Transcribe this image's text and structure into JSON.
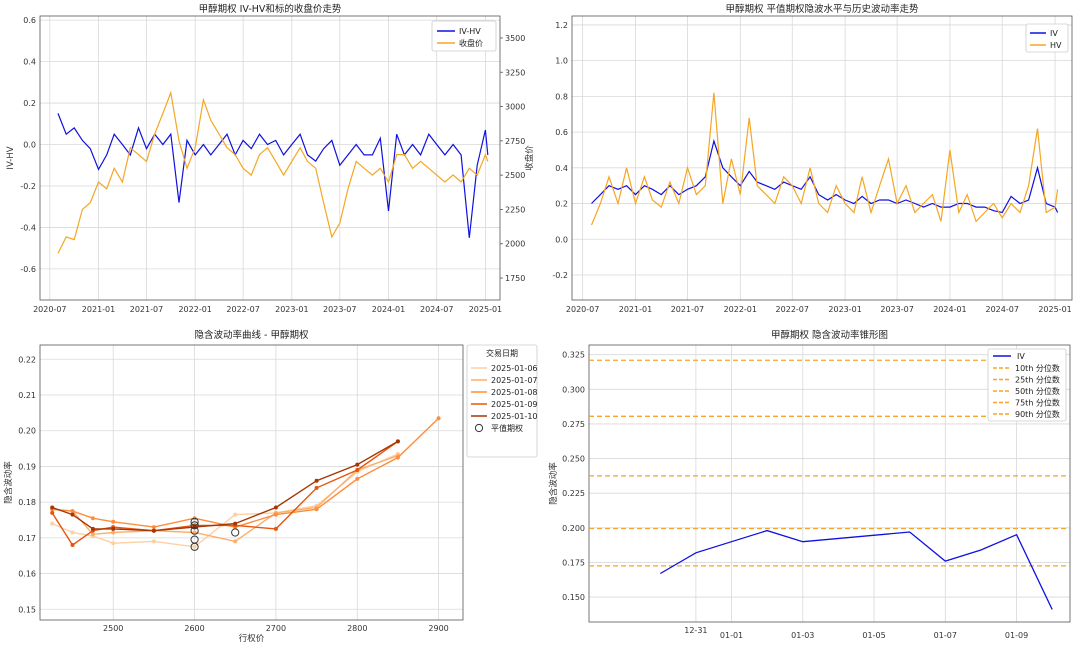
{
  "chart_data": [
    {
      "type": "line",
      "title": "甲醇期权 IV-HV和标的收盘价走势",
      "xlabel": "",
      "ylabel": "IV-HV",
      "y2label": "收盘价",
      "x_ticks": [
        "2020-07",
        "2021-01",
        "2021-07",
        "2022-01",
        "2022-07",
        "2023-01",
        "2023-07",
        "2024-01",
        "2024-07",
        "2025-01"
      ],
      "y_ticks": [
        "-0.6",
        "-0.4",
        "-0.2",
        "0.0",
        "0.2",
        "0.4",
        "0.6"
      ],
      "y2_ticks": [
        "1750",
        "2000",
        "2250",
        "2500",
        "2750",
        "3000",
        "3250",
        "3500"
      ],
      "ylim": [
        -0.75,
        0.62
      ],
      "y2lim": [
        1590,
        3660
      ],
      "grid": true,
      "legend": "top-right",
      "colors": {
        "iv_hv": "#1010e0",
        "close": "#f5a623",
        "left_axis": "#1f77b4",
        "right_axis": "#d62728"
      },
      "series": [
        {
          "name": "IV-HV",
          "axis": "left",
          "x": [
            "2020-08-01",
            "2020-09-01",
            "2020-10-01",
            "2020-11-01",
            "2020-12-01",
            "2021-01-01",
            "2021-02-01",
            "2021-03-01",
            "2021-04-01",
            "2021-05-01",
            "2021-06-01",
            "2021-07-01",
            "2021-08-01",
            "2021-09-01",
            "2021-10-01",
            "2021-11-01",
            "2021-12-01",
            "2022-01-01",
            "2022-02-01",
            "2022-03-01",
            "2022-04-01",
            "2022-05-01",
            "2022-06-01",
            "2022-07-01",
            "2022-08-01",
            "2022-09-01",
            "2022-10-01",
            "2022-11-01",
            "2022-12-01",
            "2023-01-01",
            "2023-02-01",
            "2023-03-01",
            "2023-04-01",
            "2023-05-01",
            "2023-06-01",
            "2023-07-01",
            "2023-08-01",
            "2023-09-01",
            "2023-10-01",
            "2023-11-01",
            "2023-12-01",
            "2024-01-01",
            "2024-02-01",
            "2024-03-01",
            "2024-04-01",
            "2024-05-01",
            "2024-06-01",
            "2024-07-01",
            "2024-08-01",
            "2024-09-01",
            "2024-10-01",
            "2024-11-01",
            "2024-12-01",
            "2025-01-01",
            "2025-01-10"
          ],
          "values": [
            0.15,
            0.05,
            0.08,
            0.02,
            -0.02,
            -0.12,
            -0.05,
            0.05,
            0.0,
            -0.05,
            0.08,
            -0.02,
            0.05,
            0.0,
            0.05,
            -0.28,
            0.02,
            -0.05,
            0.0,
            -0.05,
            0.0,
            0.05,
            -0.05,
            0.02,
            -0.02,
            0.05,
            0.0,
            0.02,
            -0.05,
            0.0,
            0.05,
            -0.05,
            -0.08,
            -0.02,
            0.02,
            -0.1,
            -0.05,
            0.0,
            -0.05,
            -0.05,
            0.03,
            -0.32,
            0.05,
            -0.05,
            0.0,
            -0.05,
            0.05,
            0.0,
            -0.05,
            0.0,
            -0.05,
            -0.45,
            -0.1,
            0.07,
            -0.05
          ]
        },
        {
          "name": "收盘价",
          "axis": "right",
          "x": [
            "2020-08-01",
            "2020-09-01",
            "2020-10-01",
            "2020-11-01",
            "2020-12-01",
            "2021-01-01",
            "2021-02-01",
            "2021-03-01",
            "2021-04-01",
            "2021-05-01",
            "2021-06-01",
            "2021-07-01",
            "2021-08-01",
            "2021-09-01",
            "2021-10-01",
            "2021-11-01",
            "2021-12-01",
            "2022-01-01",
            "2022-02-01",
            "2022-03-01",
            "2022-04-01",
            "2022-05-01",
            "2022-06-01",
            "2022-07-01",
            "2022-08-01",
            "2022-09-01",
            "2022-10-01",
            "2022-11-01",
            "2022-12-01",
            "2023-01-01",
            "2023-02-01",
            "2023-03-01",
            "2023-04-01",
            "2023-05-01",
            "2023-06-01",
            "2023-07-01",
            "2023-08-01",
            "2023-09-01",
            "2023-10-01",
            "2023-11-01",
            "2023-12-01",
            "2024-01-01",
            "2024-02-01",
            "2024-03-01",
            "2024-04-01",
            "2024-05-01",
            "2024-06-01",
            "2024-07-01",
            "2024-08-01",
            "2024-09-01",
            "2024-10-01",
            "2024-11-01",
            "2024-12-01",
            "2025-01-01",
            "2025-01-10"
          ],
          "values": [
            1930,
            2050,
            2030,
            2250,
            2300,
            2450,
            2400,
            2550,
            2450,
            2700,
            2650,
            2600,
            2800,
            2950,
            3100,
            2750,
            2550,
            2700,
            3050,
            2900,
            2800,
            2700,
            2650,
            2550,
            2500,
            2650,
            2700,
            2600,
            2500,
            2600,
            2700,
            2600,
            2550,
            2300,
            2050,
            2150,
            2400,
            2600,
            2550,
            2500,
            2550,
            2450,
            2650,
            2650,
            2550,
            2600,
            2550,
            2500,
            2450,
            2500,
            2450,
            2550,
            2500,
            2650,
            2600
          ]
        }
      ]
    },
    {
      "type": "line",
      "title": "甲醇期权 平值期权隐波水平与历史波动率走势",
      "xlabel": "",
      "ylabel": "",
      "x_ticks": [
        "2020-07",
        "2021-01",
        "2021-07",
        "2022-01",
        "2022-07",
        "2023-01",
        "2023-07",
        "2024-01",
        "2024-07",
        "2025-01"
      ],
      "y_ticks": [
        "-0.2",
        "0.0",
        "0.2",
        "0.4",
        "0.6",
        "0.8",
        "1.0",
        "1.2"
      ],
      "ylim": [
        -0.34,
        1.25
      ],
      "grid": true,
      "legend": "top-right",
      "colors": {
        "iv": "#1010e0",
        "hv": "#f5a623"
      },
      "series": [
        {
          "name": "IV",
          "x": [
            "2020-08-01",
            "2020-09-01",
            "2020-10-01",
            "2020-11-01",
            "2020-12-01",
            "2021-01-01",
            "2021-02-01",
            "2021-03-01",
            "2021-04-01",
            "2021-05-01",
            "2021-06-01",
            "2021-07-01",
            "2021-08-01",
            "2021-09-01",
            "2021-10-01",
            "2021-11-01",
            "2021-12-01",
            "2022-01-01",
            "2022-02-01",
            "2022-03-01",
            "2022-04-01",
            "2022-05-01",
            "2022-06-01",
            "2022-07-01",
            "2022-08-01",
            "2022-09-01",
            "2022-10-01",
            "2022-11-01",
            "2022-12-01",
            "2023-01-01",
            "2023-02-01",
            "2023-03-01",
            "2023-04-01",
            "2023-05-01",
            "2023-06-01",
            "2023-07-01",
            "2023-08-01",
            "2023-09-01",
            "2023-10-01",
            "2023-11-01",
            "2023-12-01",
            "2024-01-01",
            "2024-02-01",
            "2024-03-01",
            "2024-04-01",
            "2024-05-01",
            "2024-06-01",
            "2024-07-01",
            "2024-08-01",
            "2024-09-01",
            "2024-10-01",
            "2024-11-01",
            "2024-12-01",
            "2025-01-01",
            "2025-01-10"
          ],
          "values": [
            0.2,
            0.25,
            0.3,
            0.28,
            0.3,
            0.25,
            0.3,
            0.28,
            0.25,
            0.3,
            0.25,
            0.28,
            0.3,
            0.35,
            0.55,
            0.4,
            0.35,
            0.3,
            0.38,
            0.32,
            0.3,
            0.28,
            0.32,
            0.3,
            0.28,
            0.35,
            0.25,
            0.22,
            0.25,
            0.22,
            0.2,
            0.24,
            0.2,
            0.22,
            0.22,
            0.2,
            0.22,
            0.2,
            0.18,
            0.2,
            0.18,
            0.18,
            0.2,
            0.2,
            0.18,
            0.18,
            0.16,
            0.15,
            0.24,
            0.2,
            0.22,
            0.4,
            0.2,
            0.18,
            0.15
          ]
        },
        {
          "name": "HV",
          "x": [
            "2020-08-01",
            "2020-09-01",
            "2020-10-01",
            "2020-11-01",
            "2020-12-01",
            "2021-01-01",
            "2021-02-01",
            "2021-03-01",
            "2021-04-01",
            "2021-05-01",
            "2021-06-01",
            "2021-07-01",
            "2021-08-01",
            "2021-09-01",
            "2021-10-01",
            "2021-11-01",
            "2021-12-01",
            "2022-01-01",
            "2022-02-01",
            "2022-03-01",
            "2022-04-01",
            "2022-05-01",
            "2022-06-01",
            "2022-07-01",
            "2022-08-01",
            "2022-09-01",
            "2022-10-01",
            "2022-11-01",
            "2022-12-01",
            "2023-01-01",
            "2023-02-01",
            "2023-03-01",
            "2023-04-01",
            "2023-05-01",
            "2023-06-01",
            "2023-07-01",
            "2023-08-01",
            "2023-09-01",
            "2023-10-01",
            "2023-11-01",
            "2023-12-01",
            "2024-01-01",
            "2024-02-01",
            "2024-03-01",
            "2024-04-01",
            "2024-05-01",
            "2024-06-01",
            "2024-07-01",
            "2024-08-01",
            "2024-09-01",
            "2024-10-01",
            "2024-11-01",
            "2024-12-01",
            "2025-01-01",
            "2025-01-10"
          ],
          "values": [
            0.08,
            0.2,
            0.35,
            0.2,
            0.4,
            0.2,
            0.35,
            0.22,
            0.18,
            0.32,
            0.2,
            0.4,
            0.25,
            0.3,
            0.82,
            0.2,
            0.45,
            0.25,
            0.68,
            0.3,
            0.25,
            0.2,
            0.35,
            0.3,
            0.2,
            0.4,
            0.2,
            0.15,
            0.3,
            0.2,
            0.15,
            0.35,
            0.15,
            0.3,
            0.45,
            0.2,
            0.3,
            0.15,
            0.2,
            0.25,
            0.1,
            0.5,
            0.15,
            0.25,
            0.1,
            0.15,
            0.2,
            0.12,
            0.2,
            0.15,
            0.3,
            0.62,
            0.15,
            0.18,
            0.28
          ]
        }
      ]
    },
    {
      "type": "line",
      "title": "隐含波动率曲线 - 甲醇期权",
      "xlabel": "行权价",
      "ylabel": "隐含波动率",
      "x_ticks": [
        "2500",
        "2600",
        "2700",
        "2800",
        "2900"
      ],
      "y_ticks": [
        "0.15",
        "0.16",
        "0.17",
        "0.18",
        "0.19",
        "0.20",
        "0.21",
        "0.22"
      ],
      "xlim": [
        2410,
        2930
      ],
      "ylim": [
        0.147,
        0.224
      ],
      "grid": true,
      "legend": "outside-right",
      "legend_title": "交易日期",
      "atm_label": "平值期权",
      "colors": {
        "s1": "#fdd0a2",
        "s2": "#fdae6b",
        "s3": "#fd8d3c",
        "s4": "#e6550d",
        "s5": "#a63603"
      },
      "series": [
        {
          "name": "2025-01-06",
          "x": [
            2425,
            2450,
            2475,
            2500,
            2550,
            2600,
            2650,
            2700,
            2750,
            2800,
            2850
          ],
          "values": [
            0.174,
            0.1715,
            0.1705,
            0.1685,
            0.169,
            0.1675,
            0.1765,
            0.177,
            0.179,
            0.1885,
            0.1935
          ]
        },
        {
          "name": "2025-01-07",
          "x": [
            2425,
            2450,
            2475,
            2500,
            2550,
            2600,
            2650,
            2700,
            2750,
            2800,
            2850
          ],
          "values": [
            0.178,
            0.1775,
            0.171,
            0.1715,
            0.172,
            0.1715,
            0.169,
            0.177,
            0.1785,
            0.189,
            0.193
          ]
        },
        {
          "name": "2025-01-08",
          "x": [
            2425,
            2450,
            2475,
            2500,
            2550,
            2600,
            2650,
            2700,
            2750,
            2800,
            2850,
            2900
          ],
          "values": [
            0.178,
            0.1775,
            0.1755,
            0.1745,
            0.173,
            0.1755,
            0.173,
            0.1765,
            0.178,
            0.1865,
            0.1925,
            0.2035
          ]
        },
        {
          "name": "2025-01-09",
          "x": [
            2425,
            2450,
            2475,
            2500,
            2550,
            2600,
            2650,
            2700,
            2750,
            2800,
            2850
          ],
          "values": [
            0.177,
            0.168,
            0.172,
            0.173,
            0.172,
            0.1735,
            0.1735,
            0.1725,
            0.184,
            0.189,
            0.197
          ]
        },
        {
          "name": "2025-01-10",
          "x": [
            2425,
            2450,
            2475,
            2500,
            2550,
            2600,
            2650,
            2700,
            2750,
            2800,
            2850
          ],
          "values": [
            0.1785,
            0.1765,
            0.1725,
            0.1725,
            0.172,
            0.173,
            0.174,
            0.1785,
            0.186,
            0.1905,
            0.197
          ]
        }
      ],
      "atm_points": {
        "x": [
          2600,
          2600,
          2600,
          2600,
          2600,
          2650
        ],
        "values": [
          0.1675,
          0.1695,
          0.172,
          0.1735,
          0.1745,
          0.1715
        ]
      }
    },
    {
      "type": "line",
      "title": "甲醇期权 隐含波动率锥形图",
      "xlabel": "",
      "ylabel": "隐含波动率",
      "x_ticks": [
        "12-31",
        "01-01",
        "01-03",
        "01-05",
        "01-07",
        "01-09"
      ],
      "y_ticks": [
        "0.150",
        "0.175",
        "0.200",
        "0.225",
        "0.250",
        "0.275",
        "0.300",
        "0.325"
      ],
      "ylim": [
        0.132,
        0.332
      ],
      "grid": true,
      "legend": "top-right",
      "colors": {
        "iv": "#1010e0",
        "pct": "#f5a623"
      },
      "series": [
        {
          "name": "IV",
          "x": [
            "12-30",
            "12-31",
            "01-02",
            "01-03",
            "01-06",
            "01-07",
            "01-08",
            "01-09",
            "01-10"
          ],
          "values": [
            0.167,
            0.182,
            0.198,
            0.19,
            0.197,
            0.176,
            0.184,
            0.195,
            0.141
          ]
        }
      ],
      "percentiles": [
        {
          "name": "10th 分位数",
          "value": 0.1725
        },
        {
          "name": "25th 分位数",
          "value": 0.1995
        },
        {
          "name": "50th 分位数",
          "value": 0.2375
        },
        {
          "name": "75th 分位数",
          "value": 0.2805
        },
        {
          "name": "90th 分位数",
          "value": 0.321
        }
      ]
    }
  ]
}
